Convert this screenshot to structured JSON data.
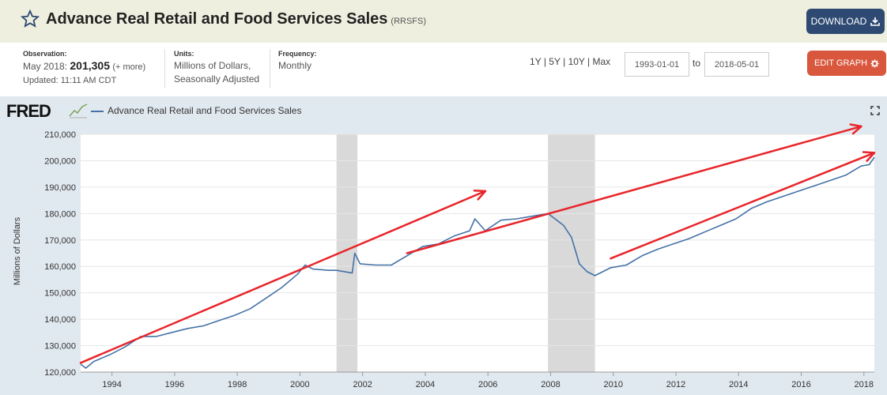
{
  "header": {
    "title": "Advance Real Retail and Food Services Sales",
    "series_id": "(RRSFS)",
    "download_label": "DOWNLOAD"
  },
  "meta": {
    "observation_label": "Observation:",
    "observation_date": "May 2018:",
    "observation_value": "201,305",
    "observation_more": "(+ more)",
    "updated": "Updated: 11:11 AM CDT",
    "units_label": "Units:",
    "units_line1": "Millions of Dollars,",
    "units_line2": "Seasonally Adjusted",
    "frequency_label": "Frequency:",
    "frequency_value": "Monthly"
  },
  "range_buttons": [
    "1Y",
    "5Y",
    "10Y",
    "Max"
  ],
  "range_separator": "|",
  "date_start": "1993-01-01",
  "date_end": "2018-05-01",
  "to_label": "to",
  "edit_graph_label": "EDIT GRAPH",
  "brand": "FRED",
  "icons": {
    "star": "star-outline-icon",
    "download": "download-icon",
    "edit": "gear-icon",
    "expand": "fullscreen-icon"
  },
  "colors": {
    "series": "#4572a7",
    "recession": "#d9d9d9",
    "annotation": "#e8252a",
    "download_button": "#2e4a73",
    "edit_button": "#d9573d"
  },
  "chart_data": {
    "type": "line",
    "legend": "Advance Real Retail and Food Services Sales",
    "legend_placement": "top-left",
    "ylabel": "Millions of Dollars",
    "ylim": [
      120000,
      210000
    ],
    "xlim": [
      "1993-01",
      "2018-05"
    ],
    "y_ticks": [
      "120,000",
      "130,000",
      "140,000",
      "150,000",
      "160,000",
      "170,000",
      "180,000",
      "190,000",
      "200,000",
      "210,000"
    ],
    "x_ticks": [
      "1994",
      "1996",
      "1998",
      "2000",
      "2002",
      "2004",
      "2006",
      "2008",
      "2010",
      "2012",
      "2014",
      "2016",
      "2018"
    ],
    "grid": "horizontal",
    "recessions": [
      [
        "2001-03",
        "2001-11"
      ],
      [
        "2007-12",
        "2009-06"
      ]
    ],
    "series": [
      {
        "name": "Advance Real Retail and Food Services Sales",
        "points": [
          [
            "1993-01",
            123000
          ],
          [
            "1993-03",
            121500
          ],
          [
            "1993-06",
            124000
          ],
          [
            "1993-12",
            126500
          ],
          [
            "1994-06",
            129500
          ],
          [
            "1994-12",
            133500
          ],
          [
            "1995-06",
            133500
          ],
          [
            "1995-12",
            135000
          ],
          [
            "1996-06",
            136500
          ],
          [
            "1996-12",
            137500
          ],
          [
            "1997-06",
            139500
          ],
          [
            "1997-12",
            141500
          ],
          [
            "1998-06",
            144000
          ],
          [
            "1998-12",
            148000
          ],
          [
            "1999-06",
            152000
          ],
          [
            "1999-12",
            157000
          ],
          [
            "2000-03",
            160500
          ],
          [
            "2000-06",
            159000
          ],
          [
            "2000-12",
            158500
          ],
          [
            "2001-03",
            158500
          ],
          [
            "2001-09",
            157500
          ],
          [
            "2001-10",
            165000
          ],
          [
            "2001-12",
            161000
          ],
          [
            "2002-06",
            160500
          ],
          [
            "2002-12",
            160500
          ],
          [
            "2003-06",
            164000
          ],
          [
            "2003-12",
            167500
          ],
          [
            "2004-06",
            168500
          ],
          [
            "2004-12",
            171500
          ],
          [
            "2005-06",
            173500
          ],
          [
            "2005-08",
            178000
          ],
          [
            "2005-12",
            173500
          ],
          [
            "2006-06",
            177500
          ],
          [
            "2006-12",
            178000
          ],
          [
            "2007-06",
            179000
          ],
          [
            "2007-12",
            180000
          ],
          [
            "2008-06",
            175500
          ],
          [
            "2008-09",
            171000
          ],
          [
            "2008-12",
            161000
          ],
          [
            "2009-03",
            158000
          ],
          [
            "2009-06",
            156500
          ],
          [
            "2009-09",
            158000
          ],
          [
            "2009-12",
            159500
          ],
          [
            "2010-06",
            160500
          ],
          [
            "2010-12",
            164000
          ],
          [
            "2011-06",
            166500
          ],
          [
            "2011-12",
            168500
          ],
          [
            "2012-06",
            170500
          ],
          [
            "2012-12",
            173000
          ],
          [
            "2013-06",
            175500
          ],
          [
            "2013-12",
            178000
          ],
          [
            "2014-06",
            182000
          ],
          [
            "2014-12",
            184500
          ],
          [
            "2015-06",
            186500
          ],
          [
            "2015-12",
            188500
          ],
          [
            "2016-06",
            190500
          ],
          [
            "2016-12",
            192500
          ],
          [
            "2017-06",
            194500
          ],
          [
            "2017-12",
            198000
          ],
          [
            "2018-03",
            198500
          ],
          [
            "2018-05",
            201305
          ]
        ]
      }
    ],
    "annotations": [
      {
        "type": "arrow",
        "from": [
          "1993-01",
          123500
        ],
        "to": [
          "2005-12",
          188500
        ]
      },
      {
        "type": "arrow",
        "from": [
          "2003-06",
          165000
        ],
        "to": [
          "2017-12",
          213000
        ]
      },
      {
        "type": "arrow",
        "from": [
          "2009-12",
          163000
        ],
        "to": [
          "2018-05",
          203000
        ]
      }
    ]
  }
}
